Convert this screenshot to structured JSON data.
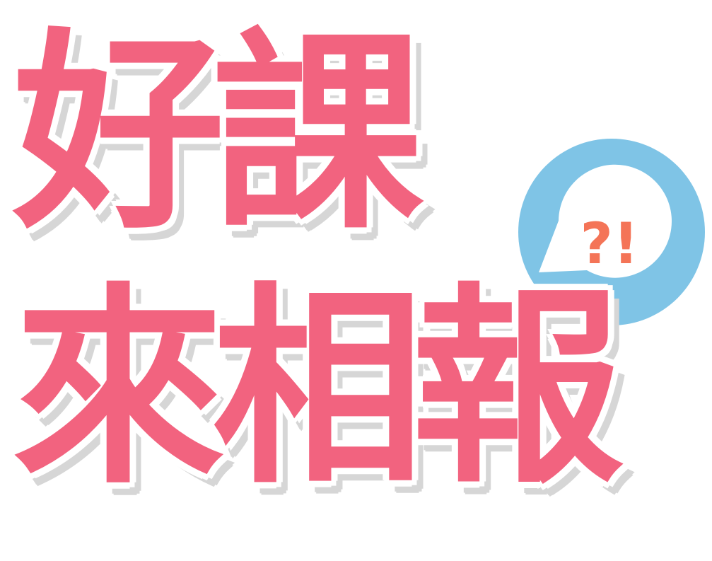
{
  "logo": {
    "line1": "好課",
    "line2": "來相報",
    "bubble_text": "?!"
  },
  "colors": {
    "title_pink": "#f2637f",
    "bubble_blue": "#7fc4e6",
    "bubble_inner": "#ffffff",
    "bubble_text": "#f47457",
    "shadow_gray": "#d6d6d6"
  }
}
